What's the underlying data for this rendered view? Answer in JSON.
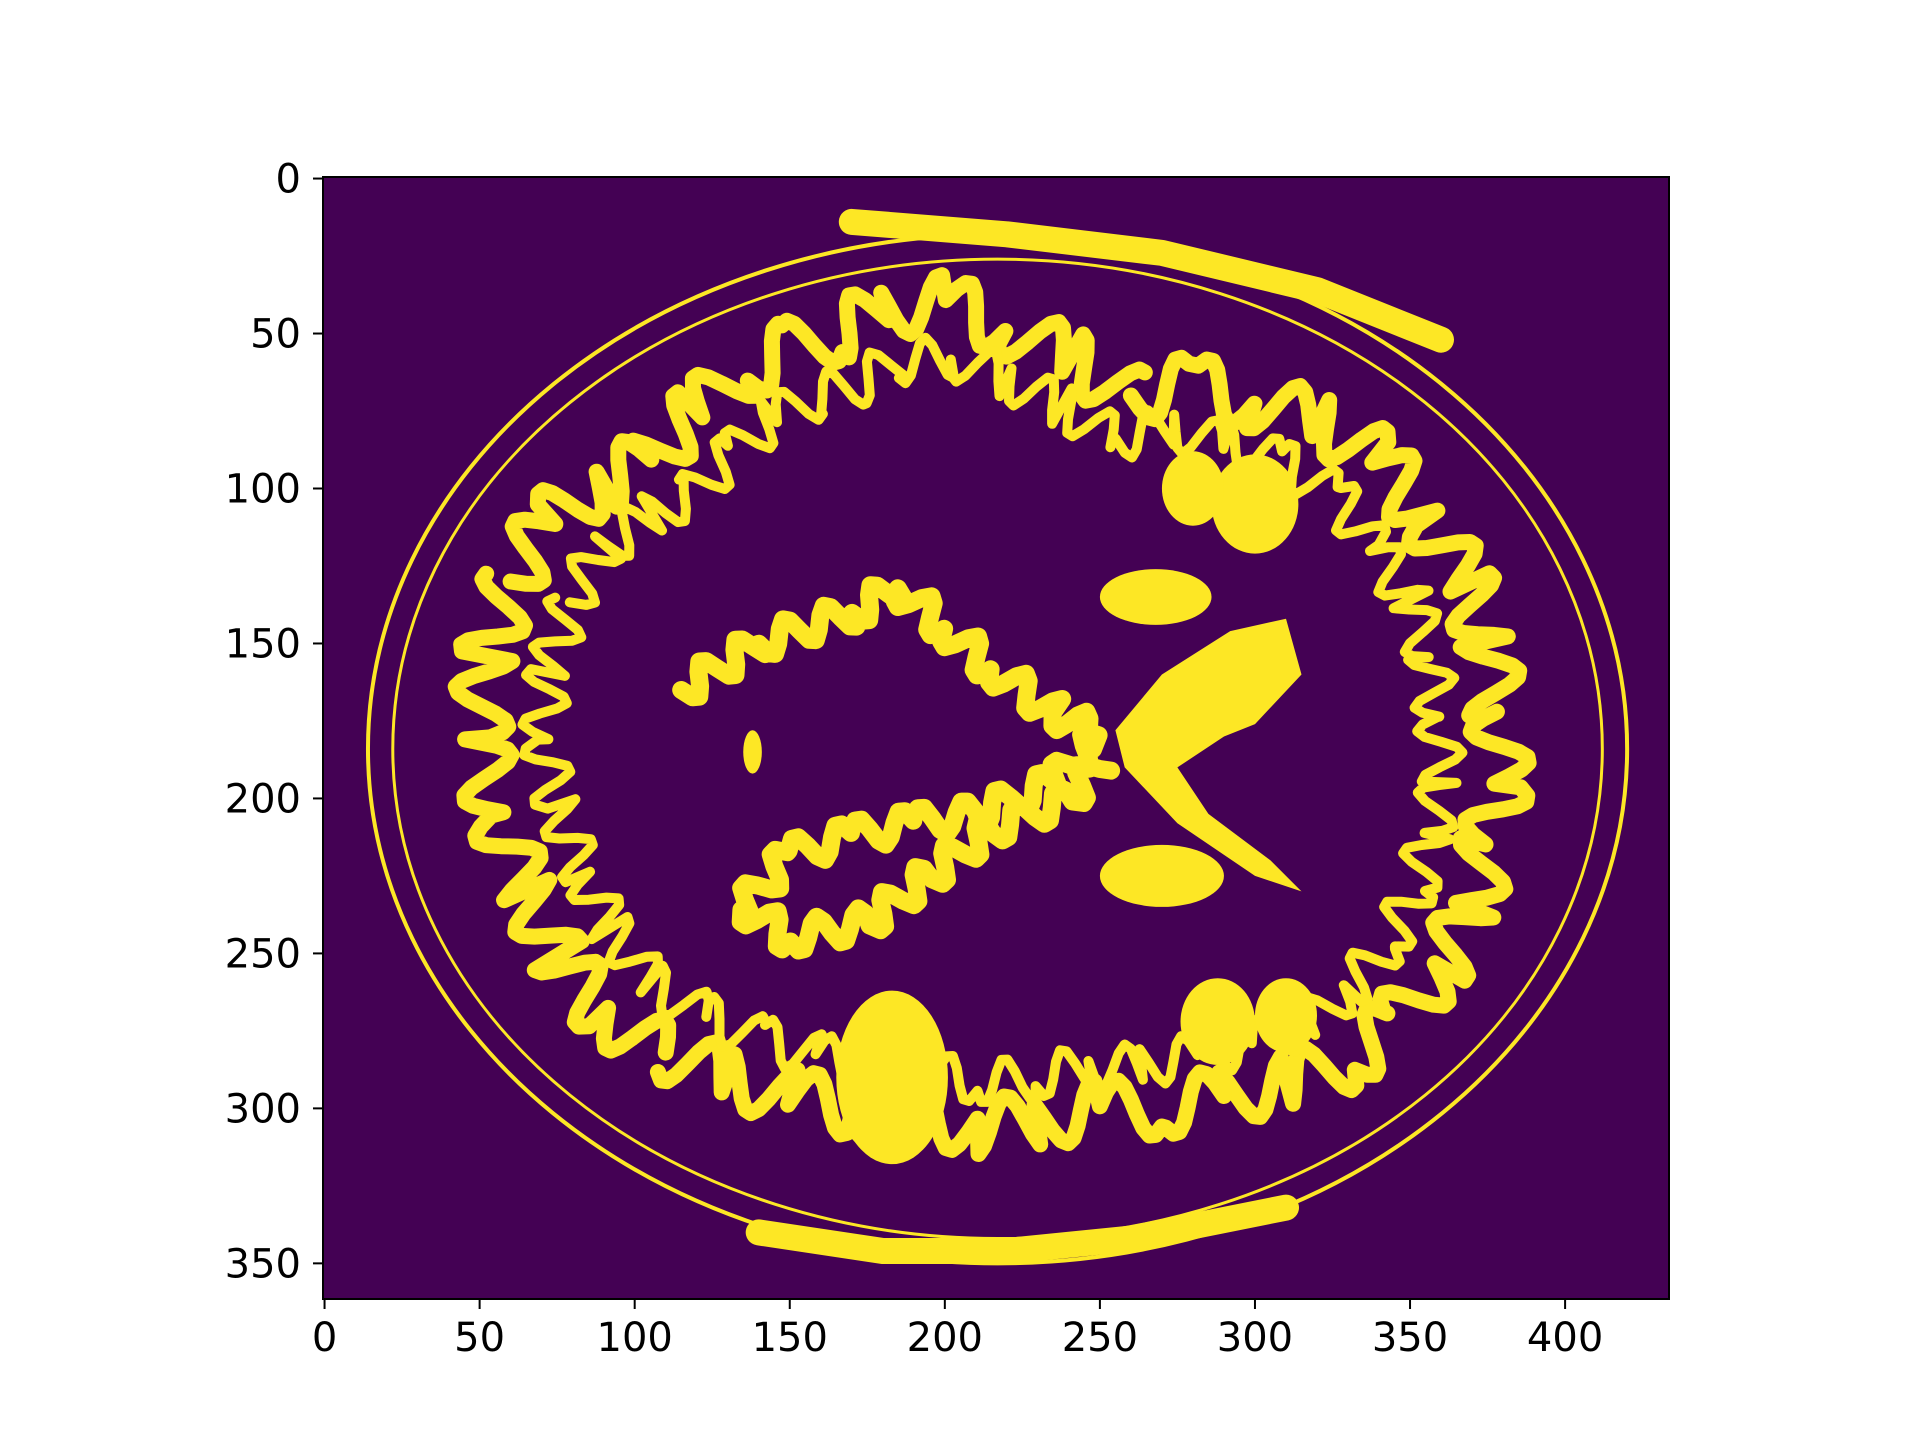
{
  "chart_data": {
    "type": "heatmap",
    "title": "",
    "xlabel": "",
    "ylabel": "",
    "image_shape": {
      "rows": 362,
      "cols": 434
    },
    "xlim": [
      -0.5,
      433.5
    ],
    "ylim": [
      361.5,
      -0.5
    ],
    "y_axis_inverted": true,
    "colormap": "viridis",
    "value_range": [
      0,
      1
    ],
    "values_present": [
      0,
      1
    ],
    "colors": {
      "0": "#440154",
      "1": "#fde725"
    },
    "x_ticks": [
      0,
      50,
      100,
      150,
      200,
      250,
      300,
      350,
      400
    ],
    "x_tick_labels": [
      "0",
      "50",
      "100",
      "150",
      "200",
      "250",
      "300",
      "350",
      "400"
    ],
    "y_ticks": [
      0,
      50,
      100,
      150,
      200,
      250,
      300,
      350
    ],
    "y_tick_labels": [
      "0",
      "50",
      "100",
      "150",
      "200",
      "250",
      "300",
      "350"
    ],
    "grid": false,
    "legend": "none",
    "content_description_note": "",
    "mask_regions": {
      "skull_outer": {
        "cx": 217,
        "cy": 184,
        "rx": 203,
        "ry": 166
      },
      "skull_inner": {
        "cx": 217,
        "cy": 184,
        "rx": 195,
        "ry": 158
      },
      "scalp_top_band": [
        [
          170,
          14
        ],
        [
          220,
          18
        ],
        [
          270,
          24
        ],
        [
          320,
          36
        ],
        [
          360,
          52
        ]
      ],
      "scalp_bottom_band": [
        [
          140,
          340
        ],
        [
          180,
          346
        ],
        [
          220,
          346
        ],
        [
          260,
          342
        ],
        [
          310,
          332
        ]
      ],
      "cortex_ring": {
        "cx": 219,
        "cy": 186,
        "rx": 172,
        "ry": 132
      },
      "gyri": [
        [
          [
            60,
            130
          ],
          [
            72,
            110
          ],
          [
            90,
            98
          ],
          [
            105,
            90
          ],
          [
            120,
            75
          ],
          [
            135,
            62
          ],
          [
            150,
            55
          ],
          [
            165,
            50
          ],
          [
            180,
            42
          ],
          [
            200,
            40
          ],
          [
            220,
            48
          ],
          [
            240,
            58
          ],
          [
            260,
            70
          ]
        ],
        [
          [
            260,
            70
          ],
          [
            280,
            66
          ],
          [
            300,
            72
          ],
          [
            320,
            78
          ],
          [
            340,
            90
          ],
          [
            355,
            110
          ],
          [
            368,
            130
          ],
          [
            375,
            150
          ],
          [
            378,
            172
          ]
        ],
        [
          [
            378,
            172
          ],
          [
            380,
            195
          ],
          [
            375,
            215
          ],
          [
            370,
            235
          ],
          [
            360,
            255
          ],
          [
            345,
            272
          ],
          [
            330,
            285
          ],
          [
            310,
            292
          ],
          [
            290,
            296
          ]
        ],
        [
          [
            290,
            296
          ],
          [
            270,
            300
          ],
          [
            250,
            300
          ],
          [
            230,
            304
          ],
          [
            210,
            306
          ],
          [
            190,
            302
          ],
          [
            170,
            300
          ],
          [
            150,
            296
          ],
          [
            130,
            290
          ],
          [
            110,
            282
          ]
        ],
        [
          [
            110,
            282
          ],
          [
            90,
            270
          ],
          [
            75,
            250
          ],
          [
            65,
            230
          ],
          [
            55,
            205
          ],
          [
            50,
            180
          ],
          [
            52,
            155
          ],
          [
            60,
            130
          ]
        ]
      ],
      "ventricles": [
        [
          [
            255,
            178
          ],
          [
            270,
            160
          ],
          [
            292,
            146
          ],
          [
            310,
            142
          ],
          [
            315,
            160
          ],
          [
            300,
            176
          ],
          [
            290,
            180
          ],
          [
            275,
            190
          ],
          [
            285,
            205
          ],
          [
            305,
            220
          ],
          [
            315,
            230
          ],
          [
            300,
            225
          ],
          [
            275,
            208
          ],
          [
            258,
            190
          ]
        ]
      ],
      "central_mass": [
        [
          [
            115,
            165
          ],
          [
            140,
            150
          ],
          [
            170,
            140
          ],
          [
            185,
            132
          ],
          [
            200,
            145
          ],
          [
            215,
            158
          ],
          [
            235,
            172
          ],
          [
            250,
            180
          ],
          [
            235,
            195
          ],
          [
            210,
            205
          ],
          [
            190,
            208
          ],
          [
            170,
            212
          ],
          [
            150,
            218
          ],
          [
            135,
            235
          ],
          [
            150,
            245
          ],
          [
            175,
            240
          ],
          [
            195,
            225
          ],
          [
            215,
            210
          ],
          [
            240,
            200
          ],
          [
            250,
            188
          ]
        ]
      ],
      "blobs": [
        {
          "cx": 183,
          "cy": 290,
          "rx": 18,
          "ry": 28
        },
        {
          "cx": 268,
          "cy": 135,
          "rx": 18,
          "ry": 9
        },
        {
          "cx": 270,
          "cy": 225,
          "rx": 20,
          "ry": 10
        },
        {
          "cx": 138,
          "cy": 185,
          "rx": 3,
          "ry": 7
        },
        {
          "cx": 300,
          "cy": 105,
          "rx": 14,
          "ry": 16
        },
        {
          "cx": 280,
          "cy": 100,
          "rx": 10,
          "ry": 12
        },
        {
          "cx": 288,
          "cy": 272,
          "rx": 12,
          "ry": 14
        },
        {
          "cx": 310,
          "cy": 270,
          "rx": 10,
          "ry": 12
        }
      ]
    }
  }
}
